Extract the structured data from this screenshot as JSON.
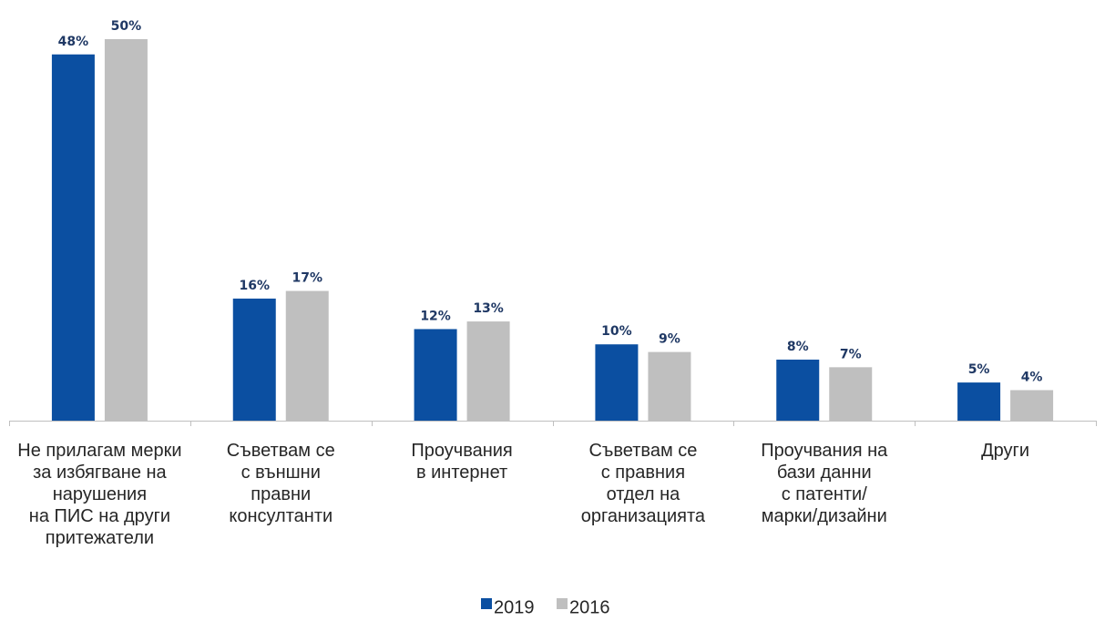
{
  "chart_data": {
    "type": "bar",
    "categories": [
      [
        "Не прилагам мерки",
        "за избягване на",
        "нарушения",
        "на ПИС на други",
        "притежатели"
      ],
      [
        "Съветвам се",
        "с външни",
        "правни",
        "консултанти"
      ],
      [
        "Проучвания",
        "в интернет"
      ],
      [
        "Съветвам се",
        "с правния",
        "отдел на",
        "организацията"
      ],
      [
        "Проучвания на",
        "бази данни",
        "с патенти/",
        "марки/дизайни"
      ],
      [
        "Други"
      ]
    ],
    "series": [
      {
        "name": "2019",
        "color": "#0b4fa1",
        "values": [
          48,
          16,
          12,
          10,
          8,
          5
        ],
        "labels": [
          "48%",
          "16%",
          "12%",
          "10%",
          "8%",
          "5%"
        ]
      },
      {
        "name": "2016",
        "color": "#bfbfbf",
        "values": [
          50,
          17,
          13,
          9,
          7,
          4
        ],
        "labels": [
          "50%",
          "17%",
          "13%",
          "9%",
          "7%",
          "4%"
        ]
      }
    ],
    "ylim": [
      0,
      50
    ],
    "grid": false,
    "legend": "bottom-center"
  }
}
